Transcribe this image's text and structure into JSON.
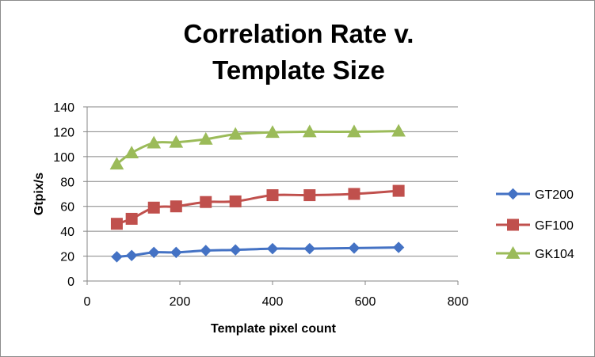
{
  "chart_data": {
    "type": "line",
    "title_lines": [
      "Correlation Rate v.",
      "Template Size"
    ],
    "xlabel": "Template pixel count",
    "ylabel": "Gtpix/s",
    "xlim": [
      0,
      800
    ],
    "ylim": [
      0,
      140
    ],
    "x_ticks": [
      "0",
      "200",
      "400",
      "600",
      "800"
    ],
    "y_ticks": [
      "0",
      "20",
      "40",
      "60",
      "80",
      "100",
      "120",
      "140"
    ],
    "grid": "horizontal",
    "legend_position": "right",
    "x": [
      64,
      96,
      144,
      192,
      256,
      320,
      400,
      480,
      576,
      672
    ],
    "series": [
      {
        "name": "GT200",
        "marker": "diamond",
        "color": "#4472C4",
        "values": [
          19.5,
          20.5,
          23,
          23,
          24.5,
          25,
          26,
          26,
          26.5,
          27
        ]
      },
      {
        "name": "GF100",
        "marker": "square",
        "color": "#C0504D",
        "values": [
          46,
          50,
          59,
          60,
          63.5,
          64,
          69,
          69,
          70,
          72.5
        ]
      },
      {
        "name": "GK104",
        "marker": "triangle",
        "color": "#9BBB59",
        "values": [
          94,
          103,
          111,
          111.5,
          114,
          118,
          119.5,
          120,
          120,
          120.5
        ]
      }
    ]
  }
}
